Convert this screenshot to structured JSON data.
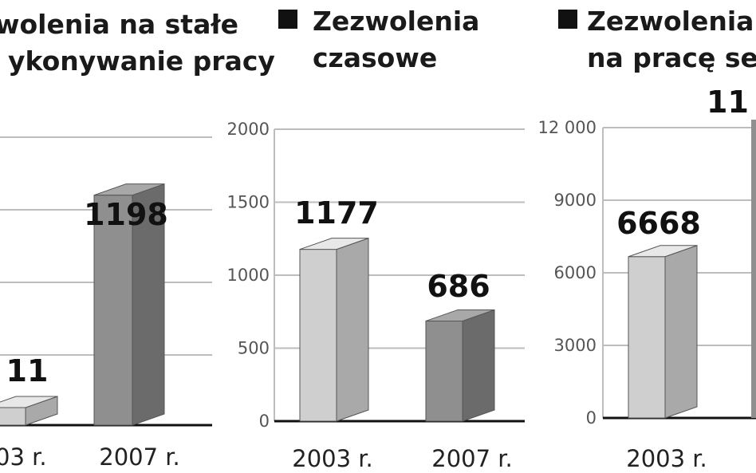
{
  "colors": {
    "grid": "#bdbdbd",
    "baseline": "#111111",
    "marker": "#111111",
    "bar_2003_front": "#cfcfcf",
    "bar_2003_side": "#a9a9a9",
    "bar_2003_top": "#e8e8e8",
    "bar_2007_front": "#8f8f8f",
    "bar_2007_side": "#6b6b6b",
    "bar_2007_top": "#a8a8a8"
  },
  "chart_data": [
    {
      "type": "bar",
      "title_lines": [
        "wolenia na stałe",
        "ykonywanie pracy"
      ],
      "categories": [
        "03 r.",
        "2007 r."
      ],
      "values": [
        11,
        1198
      ],
      "value_labels": [
        "11",
        "1198"
      ],
      "yticks": [],
      "ylim": [
        0,
        1500
      ],
      "grid": true
    },
    {
      "type": "bar",
      "title_lines": [
        "Zezwolenia",
        "czasowe"
      ],
      "categories": [
        "2003 r.",
        "2007 r."
      ],
      "values": [
        1177,
        686
      ],
      "value_labels": [
        "1177",
        "686"
      ],
      "yticks": [
        "0",
        "500",
        "1000",
        "1500",
        "2000"
      ],
      "ylim": [
        0,
        2000
      ],
      "grid": true
    },
    {
      "type": "bar",
      "title_lines": [
        "Zezwolenia",
        "na pracę sez"
      ],
      "categories": [
        "2003 r."
      ],
      "values": [
        6668
      ],
      "value_labels": [
        "6668"
      ],
      "extra_labels": [
        "11"
      ],
      "yticks": [
        "0",
        "3000",
        "6000",
        "9000",
        "12 000"
      ],
      "ylim": [
        0,
        12000
      ],
      "grid": true
    }
  ]
}
